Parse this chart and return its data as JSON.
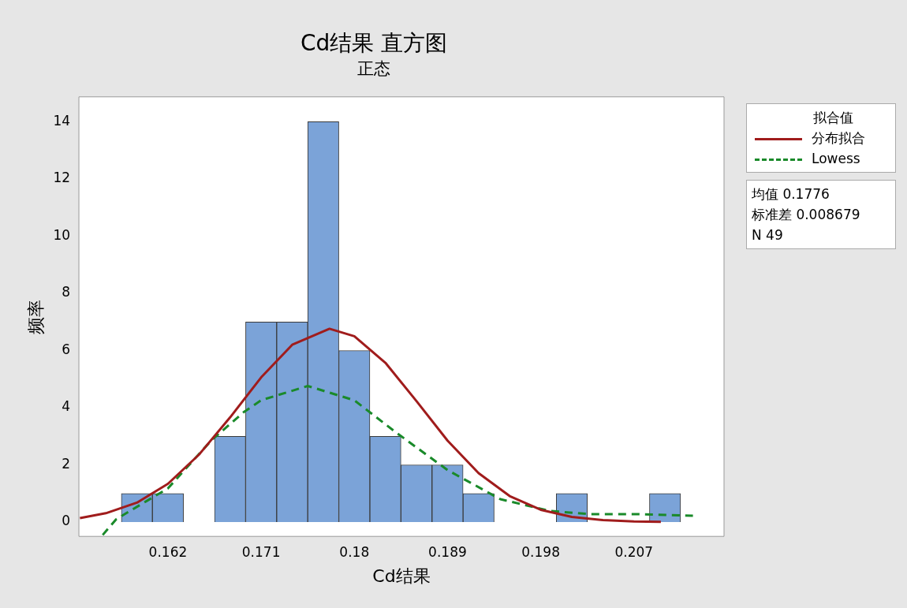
{
  "chart_data": {
    "type": "histogram",
    "title": "Cd结果 直方图",
    "subtitle": "正态",
    "xlabel": "Cd结果",
    "ylabel": "频率",
    "legend_title": "拟合值",
    "legend": "top right",
    "bins": [
      0.1575,
      0.1605,
      0.1635,
      0.1665,
      0.1695,
      0.1725,
      0.1755,
      0.1785,
      0.1815,
      0.1845,
      0.1875,
      0.1905,
      0.1935,
      0.1965,
      0.1995,
      0.2025,
      0.2055,
      0.2085,
      0.2115
    ],
    "values": [
      1,
      1,
      0,
      3,
      7,
      7,
      14,
      6,
      3,
      2,
      2,
      1,
      0,
      0,
      1,
      0,
      0,
      1
    ],
    "color": "#7ba3d8",
    "series": [
      {
        "name": "分布拟合",
        "type": "line",
        "color": "#a01c1c",
        "line_style": "solid",
        "x": [
          0.1535,
          0.156,
          0.159,
          0.162,
          0.165,
          0.168,
          0.171,
          0.174,
          0.1776,
          0.18,
          0.183,
          0.186,
          0.189,
          0.192,
          0.195,
          0.198,
          0.201,
          0.204,
          0.207,
          0.2096
        ],
        "values": [
          0.14,
          0.31,
          0.68,
          1.34,
          2.36,
          3.66,
          5.06,
          6.2,
          6.76,
          6.5,
          5.57,
          4.23,
          2.85,
          1.71,
          0.91,
          0.43,
          0.18,
          0.07,
          0.02,
          0.01
        ]
      },
      {
        "name": "Lowess",
        "type": "line",
        "color": "#1a8a2a",
        "line_style": "dashed",
        "x": [
          0.1557,
          0.157,
          0.16,
          0.162,
          0.1662,
          0.1693,
          0.171,
          0.1755,
          0.18,
          0.184,
          0.189,
          0.1941,
          0.1989,
          0.2027,
          0.207,
          0.2127
        ],
        "values": [
          -0.45,
          0.1,
          0.75,
          1.18,
          2.86,
          3.84,
          4.26,
          4.76,
          4.26,
          3.14,
          1.82,
          0.8,
          0.39,
          0.28,
          0.28,
          0.22
        ]
      }
    ],
    "xlim": [
      0.1534,
      0.2157
    ],
    "xticks": [
      0.162,
      0.171,
      0.18,
      0.189,
      0.198,
      0.207
    ],
    "ylim": [
      -0.5,
      14.87
    ],
    "yticks": [
      0,
      2,
      4,
      6,
      8,
      10,
      12,
      14
    ],
    "grid": false,
    "annotations": [
      "均值 0.1776",
      "标准差 0.008679",
      "N 49"
    ]
  }
}
